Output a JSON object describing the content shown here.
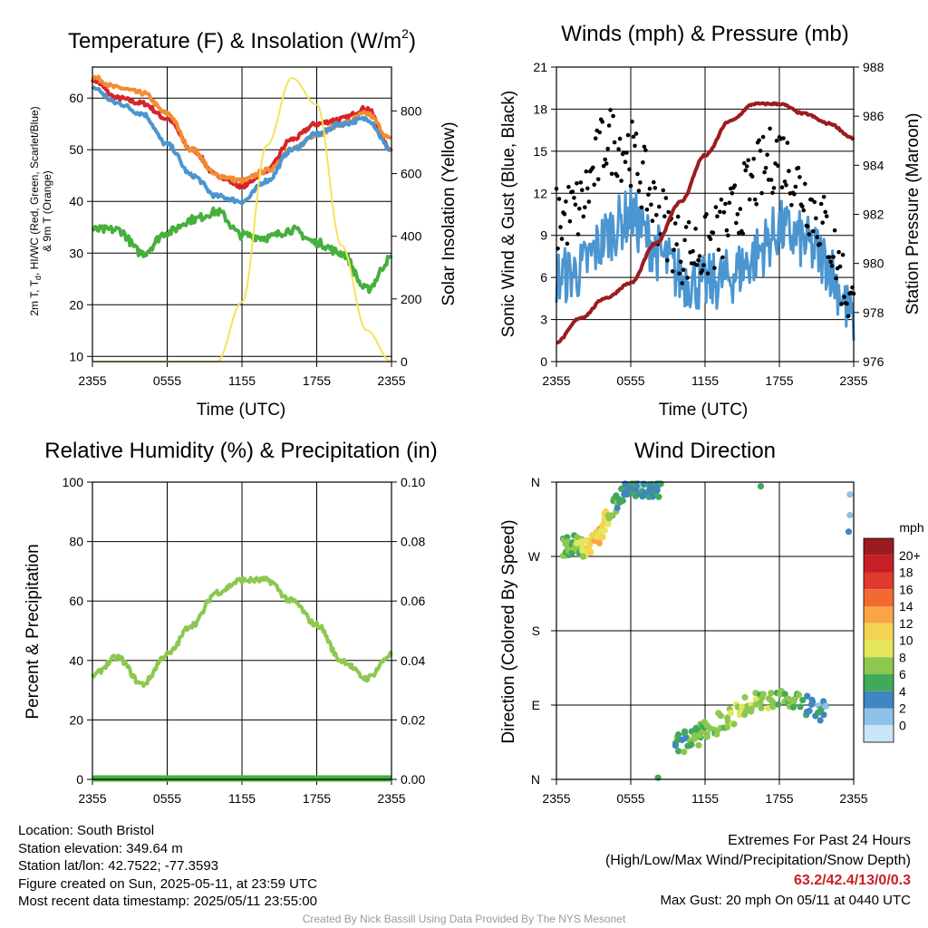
{
  "panels": {
    "temp": {
      "title": "Temperature (F) & Insolation (W/m",
      "title_sup": "2",
      "title_close": ")",
      "ylabel_line1": "2m T, T",
      "ylabel_sub": "d",
      "ylabel_line1_rest": ", HI/WC (Red, Green, Scarlet/Blue)",
      "ylabel_line2": "& 9m T (Orange)",
      "y2label": "Solar Insolation (Yellow)",
      "xlabel": "Time (UTC)",
      "yticks": [
        "10",
        "20",
        "30",
        "40",
        "50",
        "60"
      ],
      "y2ticks": [
        "0",
        "200",
        "400",
        "600",
        "800"
      ],
      "xticks": [
        "2355",
        "0555",
        "1155",
        "1755",
        "2355"
      ]
    },
    "wind": {
      "title": "Winds (mph) & Pressure (mb)",
      "ylabel": "Sonic Wind & Gust (Blue, Black)",
      "y2label": "Station Pressure (Maroon)",
      "xlabel": "Time (UTC)",
      "yticks": [
        "0",
        "3",
        "6",
        "9",
        "12",
        "15",
        "18",
        "21"
      ],
      "y2ticks": [
        "976",
        "978",
        "980",
        "982",
        "984",
        "986",
        "988"
      ],
      "xticks": [
        "2355",
        "0555",
        "1155",
        "1755",
        "2355"
      ]
    },
    "rh": {
      "title": "Relative Humidity (%) & Precipitation (in)",
      "ylabel": "Percent & Precipitation",
      "yticks": [
        "0",
        "20",
        "40",
        "60",
        "80",
        "100"
      ],
      "y2ticks": [
        "0.00",
        "0.02",
        "0.04",
        "0.06",
        "0.08",
        "0.10"
      ],
      "xticks": [
        "2355",
        "0555",
        "1155",
        "1755",
        "2355"
      ]
    },
    "dir": {
      "title": "Wind Direction",
      "ylabel": "Direction (Colored By Speed)",
      "yticks": [
        "N",
        "E",
        "S",
        "W",
        "N"
      ],
      "xticks": [
        "2355",
        "0555",
        "1155",
        "1755",
        "2355"
      ],
      "legend_title": "mph",
      "legend_labels": [
        "20+",
        "18",
        "16",
        "14",
        "12",
        "10",
        "8",
        "6",
        "4",
        "2",
        "0"
      ],
      "legend_colors": [
        "#9b1c1f",
        "#c62026",
        "#e03a2e",
        "#f26a30",
        "#f9a545",
        "#f3d351",
        "#e4e65b",
        "#8cc850",
        "#41a95a",
        "#3f86c2",
        "#8fc2e8",
        "#c9e6f8"
      ]
    }
  },
  "info": {
    "location": "Location: South Bristol",
    "elevation": "Station elevation: 349.64 m",
    "latlon": "Station lat/lon: 42.7522; -77.3593",
    "created": "Figure created on Sun, 2025-05-11, at 23:59 UTC",
    "recent": "Most recent data timestamp: 2025/05/11 23:55:00"
  },
  "extremes": {
    "title": "Extremes For Past 24 Hours",
    "subtitle": "(High/Low/Max Wind/Precipitation/Snow Depth)",
    "values": "63.2/42.4/13/0/0.3",
    "gust": "Max Gust: 20 mph On 05/11 at 0440 UTC"
  },
  "credit": "Created By Nick Bassill Using Data Provided By The NYS Mesonet",
  "chart_data": [
    {
      "type": "line",
      "title": "Temperature (F) & Insolation (W/m2)",
      "xlabel": "Time (UTC)",
      "ylabel": "2m T, Td, HI/WC (Red, Green, Scarlet/Blue) & 9m T (Orange)",
      "y2label": "Solar Insolation (Yellow)",
      "x": [
        0,
        2,
        4,
        6,
        8,
        10,
        12,
        14,
        16,
        18,
        20,
        22,
        24
      ],
      "x_tick_labels": [
        "2355",
        "0555",
        "1155",
        "1755",
        "2355"
      ],
      "ylim": [
        9,
        66
      ],
      "y2lim": [
        0,
        940
      ],
      "series": [
        {
          "name": "2m T (Red)",
          "color": "#d7232a",
          "values": [
            63.5,
            60,
            59,
            56,
            50,
            45,
            43,
            46,
            52,
            55,
            56,
            58,
            50
          ]
        },
        {
          "name": "9m T (Orange)",
          "color": "#f28c32",
          "values": [
            64,
            62,
            61,
            57,
            50,
            45,
            44,
            46,
            50,
            53,
            55,
            57,
            52
          ]
        },
        {
          "name": "Wind Chill (Blue)",
          "color": "#4b96d1",
          "values": [
            62,
            59,
            57,
            51,
            45,
            41,
            40,
            44,
            50,
            53,
            55,
            56,
            50
          ]
        },
        {
          "name": "Td (Green)",
          "color": "#46b03c",
          "values": [
            34.5,
            34.5,
            30,
            34,
            36.5,
            38,
            33.5,
            33,
            34.5,
            32,
            30,
            23,
            29
          ]
        },
        {
          "name": "Insolation (Yellow)",
          "color": "#f5e35a",
          "axis": "y2",
          "values": [
            0,
            0,
            0,
            0,
            0,
            0,
            190,
            690,
            905,
            820,
            370,
            100,
            0
          ]
        }
      ]
    },
    {
      "type": "line",
      "title": "Winds (mph) & Pressure (mb)",
      "xlabel": "Time (UTC)",
      "ylabel": "Sonic Wind & Gust (Blue, Black)",
      "y2label": "Station Pressure (Maroon)",
      "x": [
        0,
        2,
        4,
        6,
        8,
        10,
        12,
        14,
        16,
        18,
        20,
        22,
        24
      ],
      "x_tick_labels": [
        "2355",
        "0555",
        "1155",
        "1755",
        "2355"
      ],
      "ylim": [
        0,
        21
      ],
      "y2lim": [
        976,
        988
      ],
      "series": [
        {
          "name": "Sonic Wind (Blue)",
          "color": "#4b96d1",
          "values": [
            6,
            6.5,
            9,
            10.5,
            8,
            6,
            5.5,
            6,
            7.5,
            9.5,
            8.5,
            7,
            2.5
          ]
        },
        {
          "name": "Gust (Black)",
          "color": "#000000",
          "markers": true,
          "values": [
            10,
            11,
            16,
            15,
            11,
            8,
            8,
            10,
            13,
            15,
            12,
            9,
            3.5
          ]
        },
        {
          "name": "Station Pressure (Maroon)",
          "color": "#9b1c1f",
          "axis": "y2",
          "values": [
            976.8,
            977.8,
            978.6,
            979.2,
            980.8,
            982.5,
            984.4,
            985.8,
            986.5,
            986.5,
            986.1,
            985.7,
            985.1
          ]
        }
      ]
    },
    {
      "type": "line",
      "title": "Relative Humidity (%) & Precipitation (in)",
      "ylabel": "Percent & Precipitation",
      "x": [
        0,
        2,
        4,
        6,
        8,
        10,
        12,
        14,
        16,
        18,
        20,
        22,
        24
      ],
      "x_tick_labels": [
        "2355",
        "0555",
        "1155",
        "1755",
        "2355"
      ],
      "ylim": [
        0,
        100
      ],
      "y2lim": [
        0,
        0.1
      ],
      "series": [
        {
          "name": "Relative Humidity",
          "color": "#8cc850",
          "values": [
            35,
            41,
            32,
            42,
            52,
            63,
            67,
            67,
            60,
            52,
            40,
            34,
            42
          ]
        },
        {
          "name": "Precipitation",
          "color": "#46b03c",
          "axis": "y2",
          "values": [
            0,
            0,
            0,
            0,
            0,
            0,
            0,
            0,
            0,
            0,
            0,
            0,
            0
          ]
        }
      ]
    },
    {
      "type": "scatter",
      "title": "Wind Direction",
      "ylabel": "Direction (Colored By Speed)",
      "x_tick_labels": [
        "2355",
        "0555",
        "1155",
        "1755",
        "2355"
      ],
      "y_tick_labels": [
        "N",
        "E",
        "S",
        "W",
        "N"
      ],
      "ylim": [
        0,
        360
      ],
      "colorbar": {
        "title": "mph",
        "labels": [
          "20+",
          "18",
          "16",
          "14",
          "12",
          "10",
          "8",
          "6",
          "4",
          "2",
          "0"
        ]
      },
      "points": [
        {
          "x": 0.5,
          "y": 280,
          "speed": 6
        },
        {
          "x": 1.5,
          "y": 285,
          "speed": 7
        },
        {
          "x": 2.5,
          "y": 280,
          "speed": 10
        },
        {
          "x": 3.5,
          "y": 295,
          "speed": 13
        },
        {
          "x": 4.5,
          "y": 330,
          "speed": 8
        },
        {
          "x": 5.5,
          "y": 345,
          "speed": 5
        },
        {
          "x": 6.5,
          "y": 355,
          "speed": 5
        },
        {
          "x": 7.5,
          "y": 350,
          "speed": 4
        },
        {
          "x": 8.5,
          "y": 350,
          "speed": 5
        },
        {
          "x": 9.5,
          "y": 40,
          "speed": 6
        },
        {
          "x": 11,
          "y": 50,
          "speed": 6
        },
        {
          "x": 12,
          "y": 60,
          "speed": 7
        },
        {
          "x": 14,
          "y": 75,
          "speed": 9
        },
        {
          "x": 16,
          "y": 95,
          "speed": 9
        },
        {
          "x": 18,
          "y": 100,
          "speed": 8
        },
        {
          "x": 20,
          "y": 90,
          "speed": 5
        },
        {
          "x": 22,
          "y": 80,
          "speed": 3
        },
        {
          "x": 23.5,
          "y": 330,
          "speed": 3
        }
      ]
    }
  ]
}
